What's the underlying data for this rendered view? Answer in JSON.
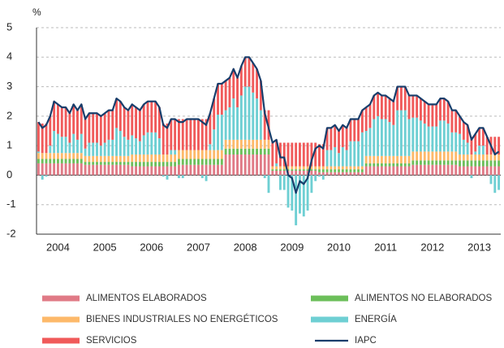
{
  "chart_data": {
    "type": "bar",
    "stacked": true,
    "ylabel": "%",
    "categories": [
      null,
      null,
      null,
      null,
      null,
      "2004",
      null,
      null,
      null,
      null,
      null,
      null,
      null,
      null,
      null,
      null,
      null,
      "2005",
      null,
      null,
      null,
      null,
      null,
      null,
      null,
      null,
      null,
      null,
      null,
      "2006",
      null,
      null,
      null,
      null,
      null,
      null,
      null,
      null,
      null,
      null,
      null,
      "2007",
      null,
      null,
      null,
      null,
      null,
      null,
      null,
      null,
      null,
      null,
      null,
      "2008",
      null,
      null,
      null,
      null,
      null,
      null,
      null,
      null,
      null,
      null,
      null,
      "2009",
      null,
      null,
      null,
      null,
      null,
      null,
      null,
      null,
      null,
      null,
      null,
      "2010",
      null,
      null,
      null,
      null,
      null,
      null,
      null,
      null,
      null,
      null,
      null,
      "2011",
      null,
      null,
      null,
      null,
      null,
      null,
      null,
      null,
      null,
      null,
      null,
      "2012",
      null,
      null,
      null,
      null,
      null,
      null,
      null,
      null,
      null,
      null,
      null,
      "2013",
      null,
      null,
      null,
      null,
      null
    ],
    "series": [
      {
        "name": "ALIMENTOS ELABORADOS",
        "color": "#e07a86",
        "values": [
          0.4,
          0.4,
          0.4,
          0.4,
          0.4,
          0.4,
          0.4,
          0.4,
          0.4,
          0.4,
          0.4,
          0.4,
          0.35,
          0.35,
          0.35,
          0.35,
          0.35,
          0.35,
          0.35,
          0.35,
          0.35,
          0.35,
          0.35,
          0.35,
          0.3,
          0.3,
          0.3,
          0.3,
          0.3,
          0.3,
          0.3,
          0.3,
          0.3,
          0.3,
          0.3,
          0.3,
          0.35,
          0.35,
          0.35,
          0.35,
          0.35,
          0.35,
          0.35,
          0.35,
          0.35,
          0.35,
          0.35,
          0.35,
          0.7,
          0.7,
          0.7,
          0.7,
          0.7,
          0.7,
          0.7,
          0.7,
          0.7,
          0.7,
          0.7,
          0.7,
          0.15,
          0.15,
          0.15,
          0.15,
          0.15,
          0.15,
          0.15,
          0.15,
          0.15,
          0.15,
          0.15,
          0.15,
          0.1,
          0.1,
          0.1,
          0.1,
          0.1,
          0.1,
          0.1,
          0.1,
          0.1,
          0.1,
          0.1,
          0.1,
          0.3,
          0.3,
          0.3,
          0.3,
          0.3,
          0.3,
          0.3,
          0.3,
          0.3,
          0.3,
          0.3,
          0.3,
          0.35,
          0.35,
          0.35,
          0.35,
          0.35,
          0.35,
          0.35,
          0.35,
          0.35,
          0.35,
          0.35,
          0.35,
          0.3,
          0.3,
          0.3,
          0.3,
          0.3,
          0.3,
          0.3,
          0.3,
          0.3,
          0.3,
          0.3
        ]
      },
      {
        "name": "ALIMENTOS NO ELABORADOS",
        "color": "#6cbf5a",
        "values": [
          0.15,
          0.15,
          0.15,
          0.15,
          0.15,
          0.15,
          0.15,
          0.15,
          0.15,
          0.15,
          0.15,
          0.15,
          0.1,
          0.1,
          0.1,
          0.1,
          0.1,
          0.1,
          0.1,
          0.1,
          0.1,
          0.1,
          0.1,
          0.1,
          0.15,
          0.15,
          0.15,
          0.15,
          0.15,
          0.15,
          0.15,
          0.15,
          0.15,
          0.15,
          0.15,
          0.15,
          0.2,
          0.2,
          0.2,
          0.2,
          0.2,
          0.2,
          0.2,
          0.2,
          0.2,
          0.2,
          0.2,
          0.2,
          0.2,
          0.2,
          0.2,
          0.2,
          0.2,
          0.2,
          0.2,
          0.2,
          0.2,
          0.2,
          0.2,
          0.2,
          0.05,
          0.05,
          0.05,
          0.05,
          0.05,
          0.05,
          0.05,
          0.05,
          0.05,
          0.05,
          0.05,
          0.05,
          0.1,
          0.1,
          0.1,
          0.1,
          0.1,
          0.1,
          0.1,
          0.1,
          0.1,
          0.1,
          0.1,
          0.1,
          0.1,
          0.1,
          0.1,
          0.1,
          0.1,
          0.1,
          0.1,
          0.1,
          0.1,
          0.1,
          0.1,
          0.1,
          0.15,
          0.15,
          0.15,
          0.15,
          0.15,
          0.15,
          0.15,
          0.15,
          0.15,
          0.15,
          0.15,
          0.15,
          0.2,
          0.2,
          0.2,
          0.2,
          0.2,
          0.2,
          0.2,
          0.2,
          0.2,
          0.2,
          0.2
        ]
      },
      {
        "name": "BIENES INDUSTRIALES NO ENERGÉTICOS",
        "color": "#fdb96a",
        "values": [
          0.2,
          0.2,
          0.2,
          0.2,
          0.2,
          0.2,
          0.2,
          0.2,
          0.2,
          0.2,
          0.2,
          0.2,
          0.2,
          0.2,
          0.2,
          0.2,
          0.2,
          0.2,
          0.2,
          0.2,
          0.2,
          0.2,
          0.2,
          0.2,
          0.25,
          0.25,
          0.25,
          0.25,
          0.25,
          0.25,
          0.25,
          0.25,
          0.25,
          0.25,
          0.25,
          0.25,
          0.3,
          0.3,
          0.3,
          0.3,
          0.3,
          0.3,
          0.3,
          0.3,
          0.3,
          0.3,
          0.3,
          0.3,
          0.3,
          0.3,
          0.3,
          0.3,
          0.3,
          0.3,
          0.3,
          0.3,
          0.3,
          0.3,
          0.3,
          0.3,
          0.1,
          0.1,
          0.1,
          0.1,
          0.1,
          0.1,
          0.1,
          0.1,
          0.1,
          0.1,
          0.1,
          0.1,
          0.1,
          0.1,
          0.1,
          0.1,
          0.1,
          0.1,
          0.1,
          0.1,
          0.1,
          0.1,
          0.1,
          0.1,
          0.25,
          0.25,
          0.25,
          0.25,
          0.25,
          0.25,
          0.25,
          0.25,
          0.25,
          0.25,
          0.25,
          0.25,
          0.3,
          0.3,
          0.3,
          0.3,
          0.3,
          0.3,
          0.3,
          0.3,
          0.3,
          0.3,
          0.3,
          0.3,
          0.2,
          0.2,
          0.2,
          0.2,
          0.2,
          0.2,
          0.2,
          0.2,
          0.2,
          0.2,
          0.2
        ]
      },
      {
        "name": "ENERGÍA",
        "color": "#6ecfd3",
        "values": [
          0.05,
          -0.15,
          -0.05,
          0.25,
          0.75,
          0.65,
          0.55,
          0.55,
          0.35,
          0.65,
          0.45,
          0.65,
          0.25,
          0.45,
          0.45,
          0.45,
          0.35,
          0.45,
          0.55,
          0.55,
          0.95,
          0.85,
          0.65,
          0.55,
          0.65,
          0.55,
          0.45,
          0.65,
          0.75,
          0.75,
          0.75,
          0.55,
          -0.05,
          -0.15,
          0.15,
          0.15,
          -0.1,
          -0.1,
          0,
          0,
          0,
          0,
          -0.1,
          -0.2,
          0.2,
          0.7,
          1.2,
          1.2,
          1.0,
          1.1,
          1.4,
          1.1,
          1.5,
          1.8,
          1.8,
          1.6,
          1.4,
          1.0,
          -0.1,
          -0.6,
          0,
          0.1,
          -0.5,
          -0.5,
          -1.1,
          -1.2,
          -1.7,
          -1.3,
          -1.4,
          -1.2,
          -0.6,
          -0.2,
          -0.05,
          -0.15,
          0.55,
          0.55,
          0.65,
          0.45,
          0.65,
          0.55,
          0.85,
          0.85,
          0.85,
          1.15,
          0.85,
          0.95,
          1.25,
          1.35,
          1.25,
          1.25,
          1.15,
          1.05,
          1.55,
          1.55,
          1.55,
          1.25,
          1.15,
          1.15,
          1.05,
          0.95,
          0.85,
          0.85,
          0.85,
          1.05,
          1.05,
          0.95,
          0.65,
          0.65,
          0.7,
          0.5,
          0.4,
          -0.1,
          0.1,
          0.3,
          0.3,
          0,
          -0.3,
          -0.6,
          -0.5
        ]
      },
      {
        "name": "SERVICIOS",
        "color": "#f05a5a",
        "values": [
          1.0,
          1.0,
          1.0,
          1.0,
          1.0,
          1.0,
          1.0,
          1.0,
          1.0,
          1.0,
          1.0,
          1.0,
          1.0,
          1.0,
          1.0,
          1.0,
          1.0,
          1.0,
          1.0,
          1.0,
          1.0,
          1.0,
          1.0,
          1.0,
          1.05,
          1.05,
          1.05,
          1.05,
          1.05,
          1.05,
          1.05,
          1.05,
          1.05,
          1.05,
          1.05,
          1.05,
          1.05,
          1.05,
          1.05,
          1.05,
          1.05,
          1.05,
          1.05,
          1.05,
          1.05,
          1.05,
          1.05,
          1.05,
          1.0,
          1.0,
          1.0,
          1.0,
          1.0,
          1.0,
          1.0,
          1.0,
          1.0,
          1.0,
          1.0,
          1.0,
          0.8,
          0.8,
          0.8,
          0.8,
          0.8,
          0.8,
          0.8,
          0.8,
          0.8,
          0.8,
          0.8,
          0.8,
          0.75,
          0.75,
          0.75,
          0.75,
          0.75,
          0.75,
          0.75,
          0.75,
          0.75,
          0.75,
          0.75,
          0.75,
          0.8,
          0.8,
          0.8,
          0.8,
          0.8,
          0.8,
          0.8,
          0.8,
          0.8,
          0.8,
          0.8,
          0.8,
          0.75,
          0.75,
          0.75,
          0.75,
          0.75,
          0.75,
          0.75,
          0.75,
          0.75,
          0.75,
          0.75,
          0.75,
          0.6,
          0.6,
          0.6,
          0.6,
          0.6,
          0.6,
          0.6,
          0.6,
          0.6,
          0.6,
          0.6
        ]
      },
      {
        "name": "IAPC",
        "type": "line",
        "color": "#173e6c",
        "values": [
          1.8,
          1.6,
          1.7,
          2.0,
          2.5,
          2.4,
          2.3,
          2.3,
          2.1,
          2.4,
          2.2,
          2.4,
          1.9,
          2.1,
          2.1,
          2.1,
          2.0,
          2.1,
          2.2,
          2.2,
          2.6,
          2.5,
          2.3,
          2.2,
          2.4,
          2.3,
          2.2,
          2.4,
          2.5,
          2.5,
          2.5,
          2.3,
          1.7,
          1.6,
          1.9,
          1.9,
          1.8,
          1.8,
          1.9,
          1.9,
          1.9,
          1.9,
          1.8,
          1.7,
          2.1,
          2.6,
          3.1,
          3.1,
          3.2,
          3.3,
          3.6,
          3.3,
          3.7,
          4.0,
          4.0,
          3.8,
          3.6,
          3.2,
          2.1,
          1.6,
          1.1,
          1.2,
          0.6,
          0.6,
          0.0,
          -0.1,
          -0.6,
          -0.2,
          -0.3,
          -0.1,
          0.5,
          0.9,
          1.0,
          0.9,
          1.6,
          1.6,
          1.7,
          1.5,
          1.7,
          1.6,
          1.9,
          1.9,
          1.9,
          2.2,
          2.3,
          2.4,
          2.7,
          2.8,
          2.7,
          2.7,
          2.6,
          2.5,
          3.0,
          3.0,
          3.0,
          2.7,
          2.7,
          2.7,
          2.6,
          2.5,
          2.4,
          2.4,
          2.4,
          2.6,
          2.6,
          2.5,
          2.2,
          2.2,
          2.0,
          1.8,
          1.7,
          1.2,
          1.4,
          1.6,
          1.6,
          1.3,
          1.0,
          0.7,
          0.8
        ]
      }
    ],
    "ylim": [
      -2,
      5
    ],
    "yticks": [
      -2,
      -1,
      0,
      1,
      2,
      3,
      4,
      5
    ],
    "grid": true,
    "legend": "bottom"
  }
}
